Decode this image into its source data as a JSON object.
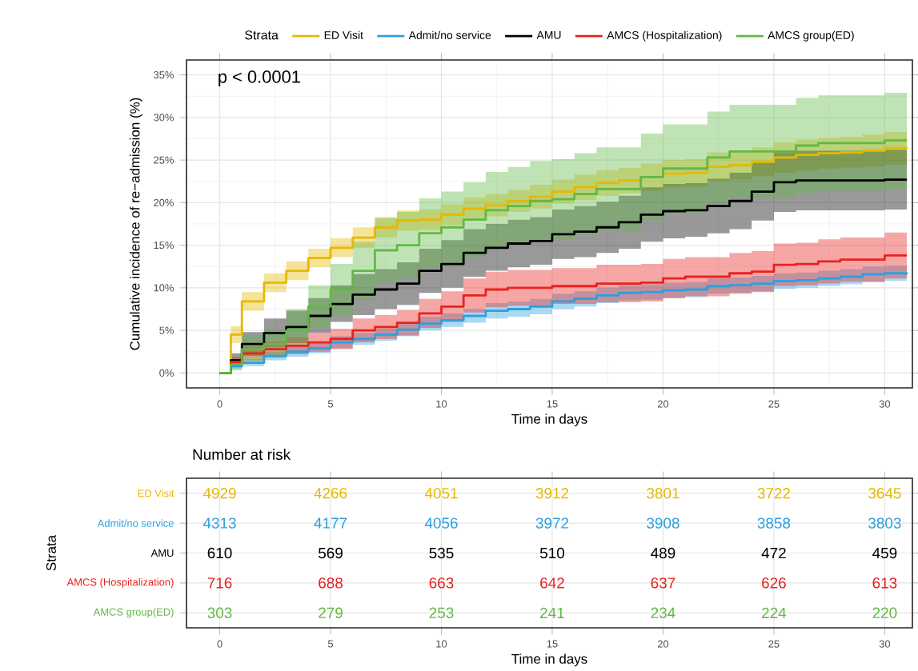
{
  "chart_data": [
    {
      "type": "step",
      "xlabel": "Time in days",
      "ylabel": "Cumulative incidence of re−admission (%)",
      "legend_title": "Strata",
      "legend": "top",
      "grid": true,
      "annotations": [
        "p < 0.0001"
      ],
      "xlim": [
        -1.5,
        31.25
      ],
      "xticks": [
        0,
        5,
        10,
        15,
        20,
        25,
        30
      ],
      "ylim": [
        -1.75,
        36.75
      ],
      "yticks": [
        {
          "value": 0,
          "label": "0%"
        },
        {
          "value": 5,
          "label": "5%"
        },
        {
          "value": 10,
          "label": "10%"
        },
        {
          "value": 15,
          "label": "15%"
        },
        {
          "value": 20,
          "label": "20%"
        },
        {
          "value": 25,
          "label": "25%"
        },
        {
          "value": 30,
          "label": "30%"
        },
        {
          "value": 35,
          "label": "35%"
        }
      ],
      "x": [
        0,
        0.5,
        1,
        2,
        3,
        4,
        5,
        6,
        7,
        8,
        9,
        10,
        11,
        12,
        13,
        14,
        15,
        16,
        17,
        18,
        19,
        20,
        21,
        22,
        23,
        24,
        25,
        26,
        27,
        28,
        29,
        30,
        31
      ],
      "series": [
        {
          "name": "ED Visit",
          "color": "#e7b800",
          "values": [
            0,
            4.5,
            8.4,
            10.6,
            12.0,
            13.5,
            14.7,
            15.9,
            17.1,
            17.9,
            18.0,
            18.6,
            19.3,
            19.7,
            20.2,
            20.7,
            21.3,
            21.8,
            22.3,
            22.6,
            23.0,
            23.4,
            23.5,
            24.2,
            24.4,
            24.8,
            25.3,
            25.6,
            25.8,
            25.9,
            26.1,
            26.4,
            26.5
          ],
          "lower": [
            0,
            3.5,
            7.3,
            9.5,
            10.9,
            12.4,
            13.6,
            14.7,
            15.9,
            16.7,
            16.8,
            17.4,
            18.0,
            18.4,
            18.9,
            19.3,
            19.9,
            20.3,
            20.8,
            21.1,
            21.4,
            21.8,
            21.9,
            22.5,
            22.7,
            23.1,
            23.5,
            23.8,
            24.0,
            24.1,
            24.2,
            24.5,
            24.6
          ],
          "upper": [
            0,
            5.5,
            9.5,
            11.7,
            13.1,
            14.6,
            15.8,
            17.1,
            18.3,
            19.1,
            19.2,
            19.8,
            20.6,
            21.0,
            21.5,
            22.1,
            22.7,
            23.3,
            23.8,
            24.1,
            24.6,
            25.0,
            25.1,
            25.9,
            26.1,
            26.5,
            27.1,
            27.4,
            27.6,
            27.7,
            28.0,
            28.3,
            28.4
          ]
        },
        {
          "name": "Admit/no service",
          "color": "#2e9fdf",
          "values": [
            0,
            0.8,
            1.2,
            2.0,
            2.5,
            2.9,
            3.6,
            4.0,
            4.5,
            5.1,
            5.8,
            6.2,
            6.7,
            7.3,
            7.5,
            7.8,
            8.4,
            8.7,
            9.1,
            9.4,
            9.5,
            9.7,
            9.8,
            10.2,
            10.3,
            10.5,
            10.8,
            10.9,
            11.1,
            11.3,
            11.6,
            11.7,
            11.8
          ],
          "lower": [
            0,
            0.5,
            0.8,
            1.5,
            1.9,
            2.3,
            2.9,
            3.3,
            3.8,
            4.3,
            5.0,
            5.4,
            5.9,
            6.4,
            6.6,
            6.9,
            7.5,
            7.8,
            8.2,
            8.5,
            8.6,
            8.8,
            8.9,
            9.3,
            9.4,
            9.6,
            9.9,
            10.0,
            10.2,
            10.4,
            10.7,
            10.8,
            10.9
          ],
          "upper": [
            0,
            1.1,
            1.6,
            2.5,
            3.1,
            3.5,
            4.3,
            4.7,
            5.2,
            5.9,
            6.6,
            7.0,
            7.5,
            8.2,
            8.4,
            8.7,
            9.3,
            9.6,
            10.0,
            10.3,
            10.4,
            10.6,
            10.7,
            11.1,
            11.2,
            11.4,
            11.7,
            11.8,
            12.0,
            12.2,
            12.5,
            12.6,
            12.7
          ]
        },
        {
          "name": "AMU",
          "color": "#000000",
          "values": [
            0,
            1.5,
            3.4,
            4.7,
            5.4,
            6.7,
            8.1,
            9.2,
            9.8,
            10.5,
            12.0,
            12.8,
            14.1,
            14.7,
            15.2,
            15.5,
            16.3,
            16.6,
            17.1,
            17.7,
            18.6,
            19.0,
            19.1,
            19.6,
            20.2,
            21.3,
            22.4,
            22.6,
            22.6,
            22.6,
            22.6,
            22.7,
            22.7
          ],
          "lower": [
            0,
            0.8,
            2.0,
            3.0,
            3.5,
            4.7,
            6.0,
            6.8,
            7.5,
            8.0,
            9.4,
            10.0,
            11.3,
            12.0,
            12.4,
            12.7,
            13.4,
            13.6,
            14.1,
            14.6,
            15.4,
            15.8,
            16.0,
            16.4,
            16.9,
            17.9,
            18.9,
            19.1,
            19.1,
            19.1,
            19.1,
            19.2,
            19.2
          ],
          "upper": [
            0,
            2.3,
            4.8,
            6.4,
            7.3,
            8.8,
            10.3,
            11.6,
            12.2,
            13.0,
            14.6,
            15.6,
            16.9,
            17.5,
            18.0,
            18.3,
            19.2,
            19.6,
            20.1,
            20.8,
            21.8,
            22.2,
            22.3,
            22.8,
            23.5,
            24.7,
            25.9,
            26.1,
            26.1,
            26.1,
            26.1,
            26.2,
            26.2
          ]
        },
        {
          "name": "AMCS (Hospitalization)",
          "color": "#e8221f",
          "values": [
            0,
            1.3,
            2.3,
            2.8,
            3.2,
            3.6,
            4.0,
            5.0,
            5.4,
            5.9,
            7.0,
            7.8,
            9.1,
            9.8,
            10.0,
            10.0,
            10.2,
            10.2,
            10.5,
            10.5,
            10.6,
            11.1,
            11.3,
            11.3,
            11.7,
            11.9,
            12.7,
            12.8,
            13.1,
            13.3,
            13.3,
            13.8,
            13.8
          ],
          "lower": [
            0,
            0.7,
            1.5,
            1.9,
            2.2,
            2.5,
            2.8,
            3.6,
            4.0,
            4.4,
            5.3,
            6.0,
            7.1,
            7.7,
            7.9,
            7.9,
            8.1,
            8.1,
            8.3,
            8.3,
            8.4,
            8.8,
            9.0,
            9.0,
            9.3,
            9.5,
            10.2,
            10.3,
            10.5,
            10.7,
            10.7,
            11.1,
            11.1
          ],
          "upper": [
            0,
            1.9,
            3.1,
            3.7,
            4.2,
            4.7,
            5.2,
            6.4,
            6.8,
            7.4,
            8.7,
            9.6,
            11.1,
            11.9,
            12.1,
            12.1,
            12.3,
            12.3,
            12.7,
            12.7,
            12.8,
            13.4,
            13.6,
            13.6,
            14.1,
            14.3,
            15.2,
            15.3,
            15.7,
            15.9,
            15.9,
            16.5,
            16.5
          ]
        },
        {
          "name": "AMCS group(ED)",
          "color": "#62b846",
          "values": [
            0,
            1.0,
            2.8,
            3.4,
            5.0,
            7.8,
            9.8,
            12.0,
            14.4,
            15.0,
            16.4,
            17.1,
            18.0,
            19.1,
            19.6,
            20.2,
            20.4,
            21.0,
            21.6,
            21.6,
            23.0,
            24.0,
            24.0,
            25.3,
            26.0,
            26.0,
            26.0,
            26.7,
            27.0,
            27.0,
            27.0,
            27.3,
            27.3
          ],
          "lower": [
            0,
            0.3,
            1.3,
            1.8,
            3.3,
            5.3,
            6.8,
            8.6,
            10.6,
            11.1,
            12.3,
            12.9,
            13.6,
            14.6,
            15.0,
            15.5,
            15.7,
            16.2,
            16.7,
            16.7,
            17.9,
            18.8,
            18.8,
            19.9,
            20.5,
            20.5,
            20.5,
            21.1,
            21.4,
            21.4,
            21.4,
            21.6,
            21.6
          ],
          "upper": [
            0,
            1.7,
            4.3,
            5.0,
            7.5,
            10.3,
            12.8,
            15.4,
            18.2,
            18.9,
            20.5,
            21.3,
            22.4,
            23.6,
            24.2,
            24.9,
            25.1,
            25.8,
            26.5,
            26.5,
            28.1,
            29.2,
            29.2,
            30.7,
            31.5,
            31.5,
            31.5,
            32.3,
            32.6,
            32.6,
            32.6,
            32.9,
            32.9
          ]
        }
      ]
    },
    {
      "type": "heatmap",
      "title": "Number at risk",
      "xlabel": "Time in days",
      "ylabel": "Strata",
      "grid": true,
      "data_labels": true,
      "categories": [
        "0",
        "5",
        "10",
        "15",
        "20",
        "25",
        "30"
      ],
      "y_categories": [
        "ED Visit",
        "Admit/no service",
        "AMU",
        "AMCS (Hospitalization)",
        "AMCS group(ED)"
      ],
      "colors": [
        "#e7b800",
        "#2e9fdf",
        "#000000",
        "#e8221f",
        "#62b846"
      ],
      "cells": [
        [
          4929,
          4266,
          4051,
          3912,
          3801,
          3722,
          3645
        ],
        [
          4313,
          4177,
          4056,
          3972,
          3908,
          3858,
          3803
        ],
        [
          610,
          569,
          535,
          510,
          489,
          472,
          459
        ],
        [
          716,
          688,
          663,
          642,
          637,
          626,
          613
        ],
        [
          303,
          279,
          253,
          241,
          234,
          224,
          220
        ]
      ]
    }
  ]
}
